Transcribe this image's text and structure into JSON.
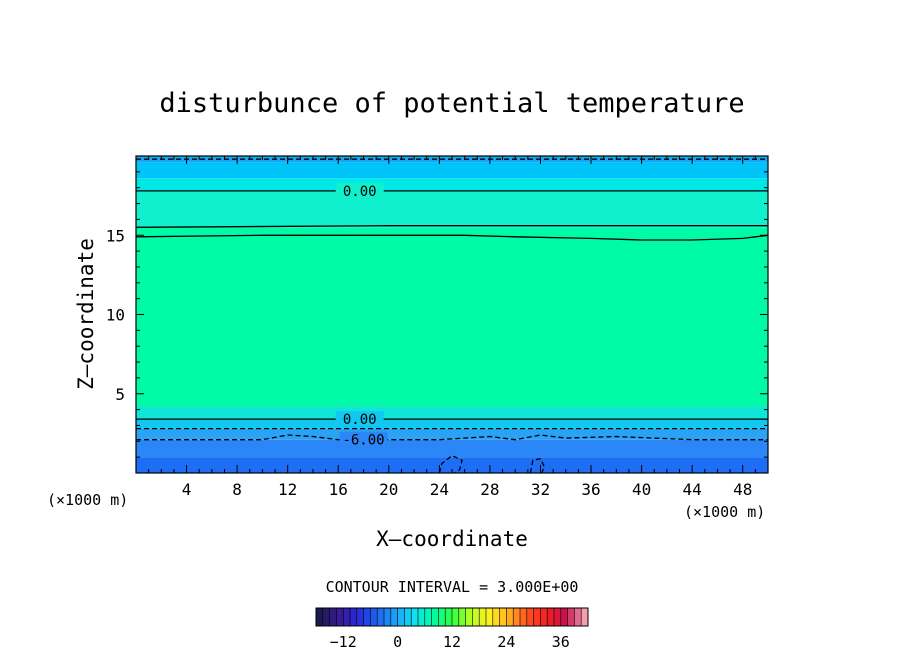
{
  "chart_data": {
    "type": "heatmap",
    "title": "disturbunce of potential temperature",
    "xlabel": "X—coordinate",
    "ylabel": "Z—coordinate",
    "x_unit_left": "(×1000 m)",
    "x_unit_right": "(×1000 m)",
    "xlim": [
      0,
      50
    ],
    "ylim": [
      0,
      20
    ],
    "x_ticks": [
      4,
      8,
      12,
      16,
      20,
      24,
      28,
      32,
      36,
      40,
      44,
      48
    ],
    "y_ticks": [
      5,
      10,
      15
    ],
    "field_bands": [
      {
        "z0": 0.0,
        "z1": 1.0,
        "value": -11.5,
        "color": "#1e6ef5"
      },
      {
        "z0": 1.0,
        "z1": 2.1,
        "value": -9.0,
        "color": "#2b86f7"
      },
      {
        "z0": 2.1,
        "z1": 2.8,
        "value": -6.5,
        "color": "#2aa3f6"
      },
      {
        "z0": 2.8,
        "z1": 3.4,
        "value": -4.0,
        "color": "#10c8f0"
      },
      {
        "z0": 3.4,
        "z1": 4.2,
        "value": -1.5,
        "color": "#10e6d6"
      },
      {
        "z0": 4.2,
        "z1": 15.5,
        "value": 0.5,
        "color": "#00fba6"
      },
      {
        "z0": 15.5,
        "z1": 17.8,
        "value": -1.5,
        "color": "#10f0cc"
      },
      {
        "z0": 17.8,
        "z1": 18.6,
        "value": -3.0,
        "color": "#00e8e6"
      },
      {
        "z0": 18.6,
        "z1": 19.6,
        "value": -5.0,
        "color": "#00c4f7"
      },
      {
        "z0": 19.6,
        "z1": 20.0,
        "value": -7.5,
        "color": "#10a8f6"
      }
    ],
    "contours": [
      {
        "level": 0.0,
        "style": "solid",
        "label": "0.00",
        "label_x": 17.7,
        "points": [
          [
            0,
            17.8
          ],
          [
            50,
            17.8
          ]
        ]
      },
      {
        "level": 0.0,
        "style": "solid",
        "label": "",
        "points": [
          [
            0,
            15.5
          ],
          [
            20,
            15.6
          ],
          [
            30,
            15.6
          ],
          [
            40,
            15.6
          ],
          [
            50,
            15.6
          ]
        ]
      },
      {
        "level": 0.0,
        "style": "solid",
        "label": "",
        "points": [
          [
            0,
            14.9
          ],
          [
            10,
            15.0
          ],
          [
            20,
            15.0
          ],
          [
            26,
            15.0
          ],
          [
            30,
            14.9
          ],
          [
            36,
            14.8
          ],
          [
            40,
            14.7
          ],
          [
            44,
            14.7
          ],
          [
            48,
            14.8
          ],
          [
            50,
            15.0
          ]
        ]
      },
      {
        "level": 0.0,
        "style": "solid",
        "label": "0.00",
        "label_x": 17.7,
        "points": [
          [
            0,
            3.4
          ],
          [
            50,
            3.4
          ]
        ]
      },
      {
        "level": -3.0,
        "style": "dashed",
        "label": "",
        "points": [
          [
            0,
            2.8
          ],
          [
            50,
            2.8
          ]
        ]
      },
      {
        "level": -6.0,
        "style": "dashed",
        "label": "-6.00",
        "label_x": 18.0,
        "points": [
          [
            0,
            2.1
          ],
          [
            10,
            2.1
          ],
          [
            12,
            2.4
          ],
          [
            14,
            2.3
          ],
          [
            16,
            2.1
          ],
          [
            24,
            2.1
          ],
          [
            28,
            2.3
          ],
          [
            30,
            2.1
          ],
          [
            32,
            2.4
          ],
          [
            34,
            2.2
          ],
          [
            38,
            2.3
          ],
          [
            44,
            2.1
          ],
          [
            50,
            2.1
          ]
        ]
      },
      {
        "level": -3.0,
        "style": "dashed",
        "label": "",
        "points": [
          [
            0,
            19.8
          ],
          [
            50,
            19.8
          ]
        ]
      },
      {
        "level": -9.0,
        "style": "dashed",
        "label": "",
        "points": [
          [
            24.0,
            0.0
          ],
          [
            24.2,
            0.6
          ],
          [
            25.0,
            1.1
          ],
          [
            25.8,
            0.8
          ],
          [
            25.6,
            0.2
          ],
          [
            25.2,
            0.0
          ]
        ]
      },
      {
        "level": -9.0,
        "style": "dashed",
        "label": "",
        "points": [
          [
            31.2,
            0.0
          ],
          [
            31.4,
            0.8
          ],
          [
            32.0,
            0.9
          ],
          [
            32.3,
            0.4
          ],
          [
            32.1,
            0.0
          ]
        ]
      }
    ],
    "contour_interval": "CONTOUR INTERVAL = 3.000E+00",
    "colorbar": {
      "vmin": -18,
      "vmax": 42,
      "ticks": [
        -12,
        0,
        12,
        24,
        36
      ],
      "stops": [
        "#1a1a50",
        "#3a1a8e",
        "#2828d8",
        "#1e5ff0",
        "#1ea0f8",
        "#10e0f0",
        "#00fca8",
        "#30ff40",
        "#b8ff20",
        "#fff020",
        "#ffb020",
        "#ff5020",
        "#f02020",
        "#c81050",
        "#f0a0b0"
      ]
    }
  }
}
